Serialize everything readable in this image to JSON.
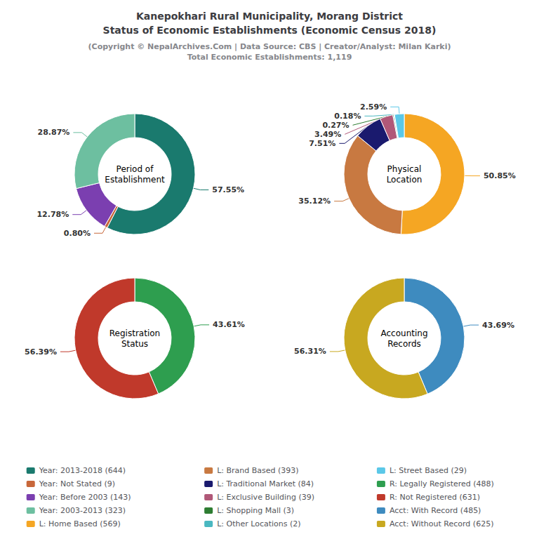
{
  "title": "Kanepokhari Rural Municipality, Morang District\nStatus of Economic Establishments (Economic Census 2018)",
  "subtitle": "(Copyright © NepalArchives.Com | Data Source: CBS | Creator/Analyst: Milan Karki)\nTotal Economic Establishments: 1,119",
  "legend": "bottom",
  "chart_data": [
    {
      "type": "pie",
      "title": "Period of\nEstablishment",
      "categories": [
        "Year: 2013-2018 (644)",
        "Year: Not Stated (9)",
        "Year: Before 2003 (143)",
        "Year: 2003-2013 (323)"
      ],
      "values": [
        57.55,
        0.8,
        12.78,
        28.87
      ],
      "value_labels": [
        "57.55%",
        "0.80%",
        "12.78%",
        "28.87%"
      ],
      "colors": [
        "#1a7a6e",
        "#c8673a",
        "#7b3fb0",
        "#6dbfa0"
      ],
      "data_labels": true
    },
    {
      "type": "pie",
      "title": "Physical\nLocation",
      "categories": [
        "L: Home Based (569)",
        "L: Brand Based (393)",
        "L: Traditional Market (84)",
        "L: Exclusive Building (39)",
        "L: Shopping Mall (3)",
        "L: Other Locations (2)",
        "L: Street Based (29)"
      ],
      "values": [
        50.85,
        35.12,
        7.51,
        3.49,
        0.27,
        0.18,
        2.59
      ],
      "value_labels": [
        "50.85%",
        "35.12%",
        "7.51%",
        "3.49%",
        "0.27%",
        "0.18%",
        "2.59%"
      ],
      "colors": [
        "#f5a623",
        "#c87941",
        "#1a1a6e",
        "#b05878",
        "#2e7d32",
        "#4ab8c1",
        "#5bc8e8"
      ],
      "data_labels": true
    },
    {
      "type": "pie",
      "title": "Registration\nStatus",
      "categories": [
        "R: Legally Registered (488)",
        "R: Not Registered (631)"
      ],
      "values": [
        43.61,
        56.39
      ],
      "value_labels": [
        "43.61%",
        "56.39%"
      ],
      "colors": [
        "#2e9e4f",
        "#c0392b"
      ],
      "data_labels": true
    },
    {
      "type": "pie",
      "title": "Accounting\nRecords",
      "categories": [
        "Acct: With Record (485)",
        "Acct: Without Record (625)"
      ],
      "values": [
        43.69,
        56.31
      ],
      "value_labels": [
        "43.69%",
        "56.31%"
      ],
      "colors": [
        "#3e8bbf",
        "#c8a820"
      ],
      "data_labels": true
    }
  ]
}
